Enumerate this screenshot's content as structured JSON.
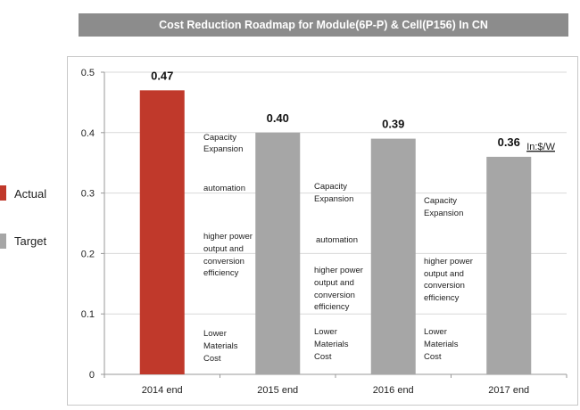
{
  "chart_data": {
    "type": "bar",
    "title": "Cost  Reduction Roadmap for Module(6P-P) & Cell(P156) In CN",
    "unit_label": "In:$/W",
    "categories": [
      "2014 end",
      "2015 end",
      "2016 end",
      "2017 end"
    ],
    "values": [
      0.47,
      0.4,
      0.39,
      0.36
    ],
    "value_labels": [
      "0.47",
      "0.40",
      "0.39",
      "0.36"
    ],
    "series_type": [
      "Actual",
      "Target",
      "Target",
      "Target"
    ],
    "ylim": [
      0,
      0.5
    ],
    "yticks": [
      "0",
      "0.1",
      "0.2",
      "0.3",
      "0.4",
      "0.5"
    ],
    "grid": true,
    "legend": {
      "placement": "left",
      "entries": [
        {
          "name": "Actual",
          "color": "#c0392b"
        },
        {
          "name": "Target",
          "color": "#a6a6a6"
        }
      ]
    },
    "annotations": [
      {
        "between": "2014 end / 2015 end",
        "lines": [
          "Capacity",
          "Expansion",
          "automation",
          "higher power",
          "output  and",
          "conversion",
          "efficiency",
          "Lower",
          "Materials",
          "Cost"
        ]
      },
      {
        "between": "2015 end / 2016 end",
        "lines": [
          "Capacity",
          "Expansion",
          "automation",
          "higher power",
          "output  and",
          "conversion",
          "efficiency",
          "Lower",
          "Materials",
          "Cost"
        ]
      },
      {
        "between": "2016 end / 2017 end",
        "lines": [
          "Capacity",
          "Expansion",
          "higher power",
          "output  and",
          "conversion",
          "efficiency",
          "Lower",
          "Materials",
          "Cost"
        ]
      }
    ]
  }
}
